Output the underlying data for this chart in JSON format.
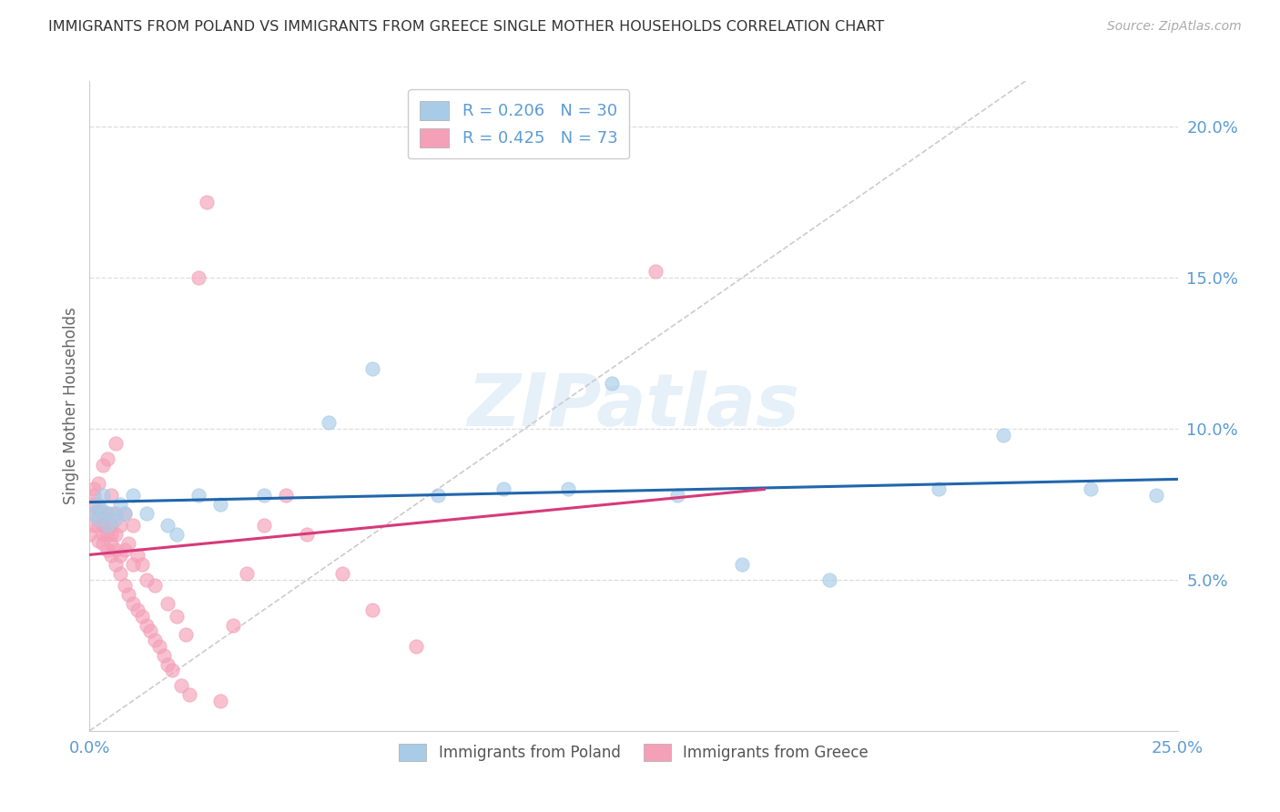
{
  "title": "IMMIGRANTS FROM POLAND VS IMMIGRANTS FROM GREECE SINGLE MOTHER HOUSEHOLDS CORRELATION CHART",
  "source": "Source: ZipAtlas.com",
  "ylabel": "Single Mother Households",
  "ytick_labels": [
    "5.0%",
    "10.0%",
    "15.0%",
    "20.0%"
  ],
  "ytick_values": [
    0.05,
    0.1,
    0.15,
    0.2
  ],
  "xlim": [
    0.0,
    0.25
  ],
  "ylim": [
    0.0,
    0.215
  ],
  "poland_R": 0.206,
  "poland_N": 30,
  "greece_R": 0.425,
  "greece_N": 73,
  "poland_color": "#a8cce8",
  "greece_color": "#f4a0b8",
  "poland_line_color": "#2166ac",
  "greece_line_color": "#d63a7a",
  "diagonal_color": "#cccccc",
  "watermark": "ZIPatlas",
  "tick_color": "#5b9bd5",
  "grid_color": "#dddddd",
  "poland_scatter_x": [
    0.001,
    0.002,
    0.002,
    0.003,
    0.003,
    0.004,
    0.005,
    0.006,
    0.007,
    0.008,
    0.01,
    0.013,
    0.018,
    0.02,
    0.025,
    0.03,
    0.04,
    0.055,
    0.065,
    0.08,
    0.095,
    0.11,
    0.12,
    0.135,
    0.15,
    0.17,
    0.195,
    0.21,
    0.23,
    0.245
  ],
  "poland_scatter_y": [
    0.072,
    0.075,
    0.07,
    0.073,
    0.078,
    0.068,
    0.072,
    0.07,
    0.075,
    0.072,
    0.078,
    0.072,
    0.068,
    0.065,
    0.078,
    0.075,
    0.078,
    0.102,
    0.12,
    0.078,
    0.08,
    0.08,
    0.115,
    0.078,
    0.055,
    0.05,
    0.08,
    0.098,
    0.08,
    0.078
  ],
  "greece_scatter_x": [
    0.0,
    0.001,
    0.001,
    0.001,
    0.001,
    0.001,
    0.002,
    0.002,
    0.002,
    0.002,
    0.002,
    0.003,
    0.003,
    0.003,
    0.003,
    0.003,
    0.003,
    0.004,
    0.004,
    0.004,
    0.004,
    0.004,
    0.005,
    0.005,
    0.005,
    0.005,
    0.005,
    0.006,
    0.006,
    0.006,
    0.006,
    0.006,
    0.007,
    0.007,
    0.007,
    0.008,
    0.008,
    0.008,
    0.009,
    0.009,
    0.01,
    0.01,
    0.01,
    0.011,
    0.011,
    0.012,
    0.012,
    0.013,
    0.013,
    0.014,
    0.015,
    0.015,
    0.016,
    0.017,
    0.018,
    0.018,
    0.019,
    0.02,
    0.021,
    0.022,
    0.023,
    0.025,
    0.027,
    0.03,
    0.033,
    0.036,
    0.04,
    0.045,
    0.05,
    0.058,
    0.065,
    0.075,
    0.13
  ],
  "greece_scatter_y": [
    0.065,
    0.068,
    0.072,
    0.075,
    0.078,
    0.08,
    0.063,
    0.068,
    0.07,
    0.073,
    0.082,
    0.062,
    0.065,
    0.068,
    0.07,
    0.072,
    0.088,
    0.06,
    0.065,
    0.068,
    0.072,
    0.09,
    0.058,
    0.062,
    0.065,
    0.068,
    0.078,
    0.055,
    0.06,
    0.065,
    0.072,
    0.095,
    0.052,
    0.058,
    0.068,
    0.048,
    0.06,
    0.072,
    0.045,
    0.062,
    0.042,
    0.055,
    0.068,
    0.04,
    0.058,
    0.038,
    0.055,
    0.035,
    0.05,
    0.033,
    0.03,
    0.048,
    0.028,
    0.025,
    0.022,
    0.042,
    0.02,
    0.038,
    0.015,
    0.032,
    0.012,
    0.15,
    0.175,
    0.01,
    0.035,
    0.052,
    0.068,
    0.078,
    0.065,
    0.052,
    0.04,
    0.028,
    0.152
  ]
}
